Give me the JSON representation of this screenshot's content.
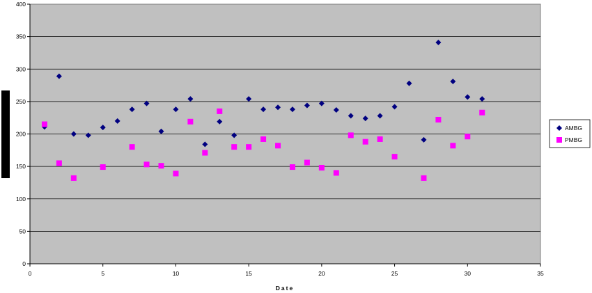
{
  "chart_data": {
    "type": "scatter",
    "title": "",
    "xlabel": "Date",
    "ylabel": "",
    "xlim": [
      0,
      35
    ],
    "ylim": [
      0,
      400
    ],
    "x_ticks": [
      0,
      5,
      10,
      15,
      20,
      25,
      30,
      35
    ],
    "y_ticks": [
      0,
      50,
      100,
      150,
      200,
      250,
      300,
      350,
      400
    ],
    "grid": "horizontal",
    "legend_position": "right",
    "plot_background": "#c0c0c0",
    "series": [
      {
        "name": "AMBG",
        "color": "#000080",
        "marker": "diamond",
        "points": [
          [
            1,
            211
          ],
          [
            2,
            289
          ],
          [
            3,
            200
          ],
          [
            4,
            198
          ],
          [
            5,
            210
          ],
          [
            6,
            220
          ],
          [
            7,
            238
          ],
          [
            8,
            247
          ],
          [
            9,
            204
          ],
          [
            10,
            238
          ],
          [
            11,
            254
          ],
          [
            12,
            184
          ],
          [
            13,
            219
          ],
          [
            14,
            198
          ],
          [
            15,
            254
          ],
          [
            16,
            238
          ],
          [
            17,
            241
          ],
          [
            18,
            238
          ],
          [
            19,
            244
          ],
          [
            20,
            247
          ],
          [
            21,
            237
          ],
          [
            22,
            228
          ],
          [
            23,
            224
          ],
          [
            24,
            228
          ],
          [
            25,
            242
          ],
          [
            26,
            278
          ],
          [
            27,
            191
          ],
          [
            28,
            341
          ],
          [
            29,
            281
          ],
          [
            30,
            257
          ],
          [
            31,
            254
          ]
        ]
      },
      {
        "name": "PMBG",
        "color": "#ff00ff",
        "marker": "square",
        "points": [
          [
            1,
            215
          ],
          [
            2,
            155
          ],
          [
            3,
            132
          ],
          [
            5,
            149
          ],
          [
            7,
            180
          ],
          [
            8,
            153
          ],
          [
            9,
            151
          ],
          [
            10,
            139
          ],
          [
            11,
            219
          ],
          [
            12,
            171
          ],
          [
            13,
            235
          ],
          [
            14,
            180
          ],
          [
            15,
            180
          ],
          [
            16,
            192
          ],
          [
            17,
            182
          ],
          [
            18,
            149
          ],
          [
            19,
            156
          ],
          [
            20,
            148
          ],
          [
            21,
            140
          ],
          [
            22,
            198
          ],
          [
            23,
            188
          ],
          [
            24,
            192
          ],
          [
            25,
            165
          ],
          [
            27,
            132
          ],
          [
            28,
            222
          ],
          [
            29,
            182
          ],
          [
            30,
            196
          ],
          [
            31,
            233
          ]
        ]
      }
    ]
  }
}
